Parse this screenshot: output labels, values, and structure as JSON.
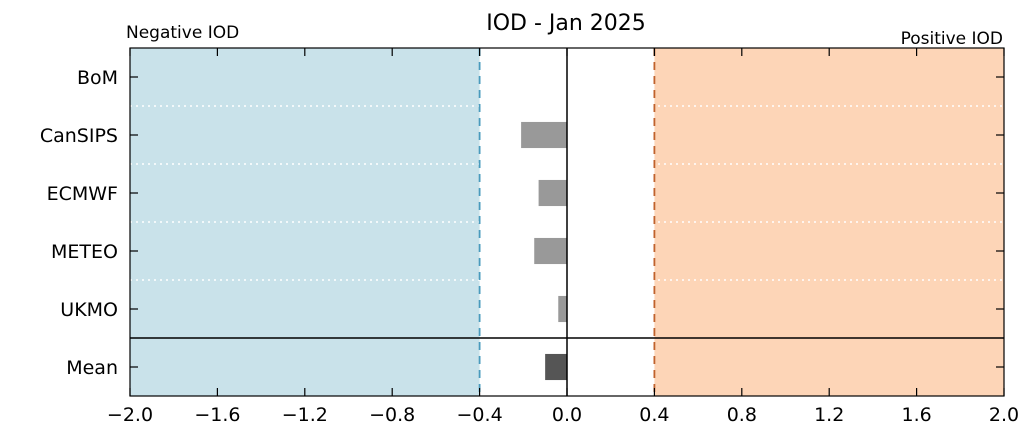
{
  "chart_data": {
    "type": "bar",
    "orientation": "horizontal",
    "title": "IOD - Jan 2025",
    "categories": [
      "BoM",
      "CanSIPS",
      "ECMWF",
      "METEO",
      "UKMO",
      "Mean"
    ],
    "values": [
      0.0,
      -0.21,
      -0.13,
      -0.15,
      -0.04,
      -0.1
    ],
    "xlim": [
      -2.0,
      2.0
    ],
    "x_ticks": [
      "−2.0",
      "−1.6",
      "−1.2",
      "−0.8",
      "−0.4",
      "0.0",
      "0.4",
      "0.8",
      "1.2",
      "1.6",
      "2.0"
    ],
    "x_tick_values": [
      -2.0,
      -1.6,
      -1.2,
      -0.8,
      -0.4,
      0.0,
      0.4,
      0.8,
      1.2,
      1.6,
      2.0
    ],
    "thresholds": {
      "negative": -0.4,
      "positive": 0.4
    },
    "regions": {
      "negative": {
        "label": "Negative IOD",
        "color": "#c9e2ea",
        "label_color": "#4a9bbd",
        "line_color": "#4a9bbd"
      },
      "positive": {
        "label": "Positive IOD",
        "color": "#fdd5b7",
        "label_color": "#d2733a",
        "line_color": "#c0622c"
      }
    },
    "colors": {
      "bar": "#999999",
      "mean_bar": "#555555",
      "grid": "#ffffff"
    },
    "grid": "dotted horizontal separators"
  }
}
